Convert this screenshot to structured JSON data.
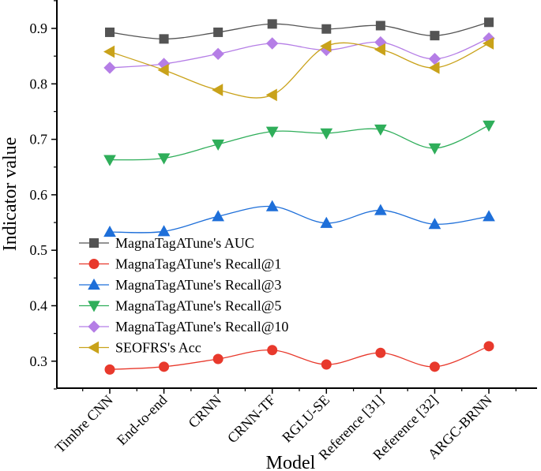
{
  "chart_data": {
    "type": "line",
    "title": "",
    "xlabel": "Model",
    "ylabel": "Indicator value",
    "ylim": [
      0.22,
      0.95
    ],
    "yticks": [
      0.3,
      0.4,
      0.5,
      0.6,
      0.7,
      0.8,
      0.9
    ],
    "ytick_labels": [
      "0.3",
      "0.4",
      "0.5",
      "0.6",
      "0.7",
      "0.8",
      "0.9"
    ],
    "categories": [
      "Timbre CNN",
      "End-to-end",
      "CRNN",
      "CRNN-TF",
      "RGLU-SE",
      "Reference [31]",
      "Reference [32]",
      "ARGC-BRNN"
    ],
    "legend_position": "bottom-left",
    "series": [
      {
        "name": "MagnaTagATune's AUC",
        "color": "#545454",
        "marker": "square",
        "values": [
          0.893,
          0.881,
          0.893,
          0.908,
          0.899,
          0.905,
          0.887,
          0.911
        ]
      },
      {
        "name": "MagnaTagATune's Recall@1",
        "color": "#e8392c",
        "marker": "circle",
        "values": [
          0.285,
          0.29,
          0.304,
          0.32,
          0.294,
          0.315,
          0.29,
          0.327
        ]
      },
      {
        "name": "MagnaTagATune's Recall@3",
        "color": "#1e6fd9",
        "marker": "triangle-up",
        "values": [
          0.533,
          0.534,
          0.561,
          0.579,
          0.549,
          0.572,
          0.547,
          0.561
        ]
      },
      {
        "name": "MagnaTagATune's Recall@5",
        "color": "#2fae5a",
        "marker": "triangle-down",
        "values": [
          0.663,
          0.666,
          0.691,
          0.714,
          0.711,
          0.718,
          0.684,
          0.725
        ]
      },
      {
        "name": "MagnaTagATune's Recall@10",
        "color": "#b57ee6",
        "marker": "diamond",
        "values": [
          0.829,
          0.836,
          0.854,
          0.873,
          0.861,
          0.875,
          0.845,
          0.882
        ]
      },
      {
        "name": "SEOFRS's Acc",
        "color": "#c9a21a",
        "marker": "triangle-left",
        "values": [
          0.858,
          0.825,
          0.789,
          0.78,
          0.868,
          0.862,
          0.829,
          0.873
        ]
      }
    ]
  }
}
